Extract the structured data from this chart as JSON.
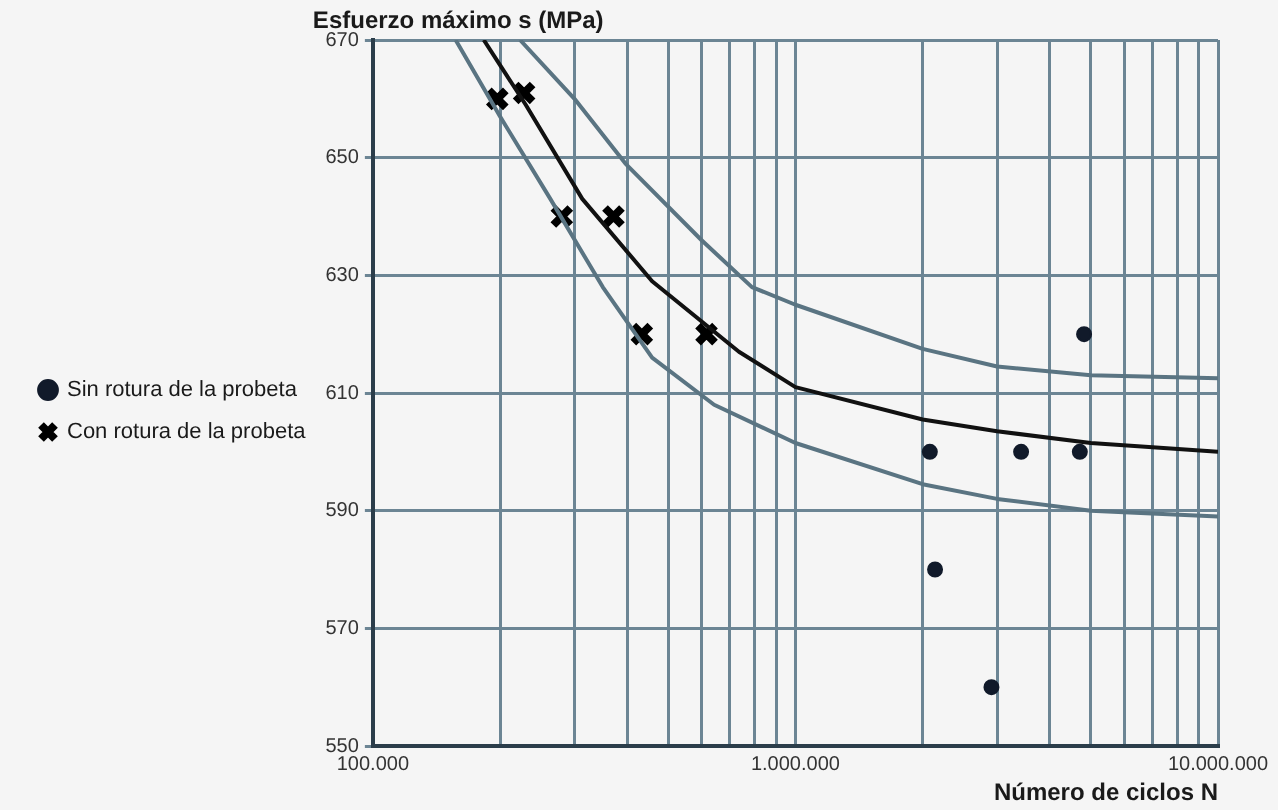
{
  "chart_data": {
    "type": "scatter",
    "xlabel": "Número de ciclos N",
    "ylabel": "Esfuerzo máximo s (MPa)",
    "log": "x",
    "grid": true,
    "legend": "left",
    "xlim": [
      100000,
      10000000
    ],
    "ylim": [
      550,
      670
    ],
    "xticks": [
      {
        "value": 100000,
        "label": "100.000"
      },
      {
        "value": 200000,
        "label": null
      },
      {
        "value": 300000,
        "label": null
      },
      {
        "value": 400000,
        "label": null
      },
      {
        "value": 500000,
        "label": null
      },
      {
        "value": 600000,
        "label": null
      },
      {
        "value": 700000,
        "label": null
      },
      {
        "value": 800000,
        "label": null
      },
      {
        "value": 900000,
        "label": null
      },
      {
        "value": 1000000,
        "label": "1.000.000"
      },
      {
        "value": 2000000,
        "label": null
      },
      {
        "value": 3000000,
        "label": null
      },
      {
        "value": 4000000,
        "label": null
      },
      {
        "value": 5000000,
        "label": null
      },
      {
        "value": 6000000,
        "label": null
      },
      {
        "value": 7000000,
        "label": null
      },
      {
        "value": 8000000,
        "label": null
      },
      {
        "value": 9000000,
        "label": null
      },
      {
        "value": 10000000,
        "label": "10.000.000"
      }
    ],
    "yticks": [
      550,
      570,
      590,
      610,
      630,
      650,
      670
    ],
    "series": [
      {
        "type": "line",
        "color": "#5a7482",
        "marker": "none",
        "x": [
          223000,
          300000,
          396000,
          599000,
          789000,
          1000000,
          2000000,
          3000000,
          5000000,
          10000000
        ],
        "values": [
          670,
          660,
          649,
          636,
          628,
          625,
          617.5,
          614.5,
          613,
          612.5
        ]
      },
      {
        "type": "line",
        "color": "#5a7482",
        "marker": "none",
        "x": [
          157000,
          200000,
          263000,
          350000,
          458000,
          642000,
          1000000,
          2000000,
          3000000,
          5000000,
          10000000
        ],
        "values": [
          670,
          657,
          643,
          628,
          616,
          608,
          601.5,
          594.5,
          592,
          590,
          589
        ]
      },
      {
        "type": "line",
        "color": "#111111",
        "marker": "none",
        "x": [
          183000,
          230000,
          313000,
          458000,
          735000,
          1000000,
          2000000,
          3000000,
          5000000,
          10000000
        ],
        "values": [
          670,
          659,
          643,
          629,
          617,
          611,
          605.5,
          603.5,
          601.5,
          600
        ]
      },
      {
        "type": "scatter",
        "name": "Sin rotura de la probeta",
        "color": "#111a2a",
        "marker": "circle",
        "x": [
          4820000,
          2080000,
          3420000,
          4710000,
          2140000,
          2910000
        ],
        "values": [
          620,
          600,
          600,
          600,
          580,
          560
        ]
      },
      {
        "type": "scatter",
        "name": "Con rotura de la probeta",
        "color": "#000000",
        "marker": "cross",
        "x": [
          197000,
          228000,
          280000,
          371000,
          433000,
          616000
        ],
        "values": [
          660,
          661,
          640,
          640,
          620,
          620
        ]
      }
    ]
  }
}
